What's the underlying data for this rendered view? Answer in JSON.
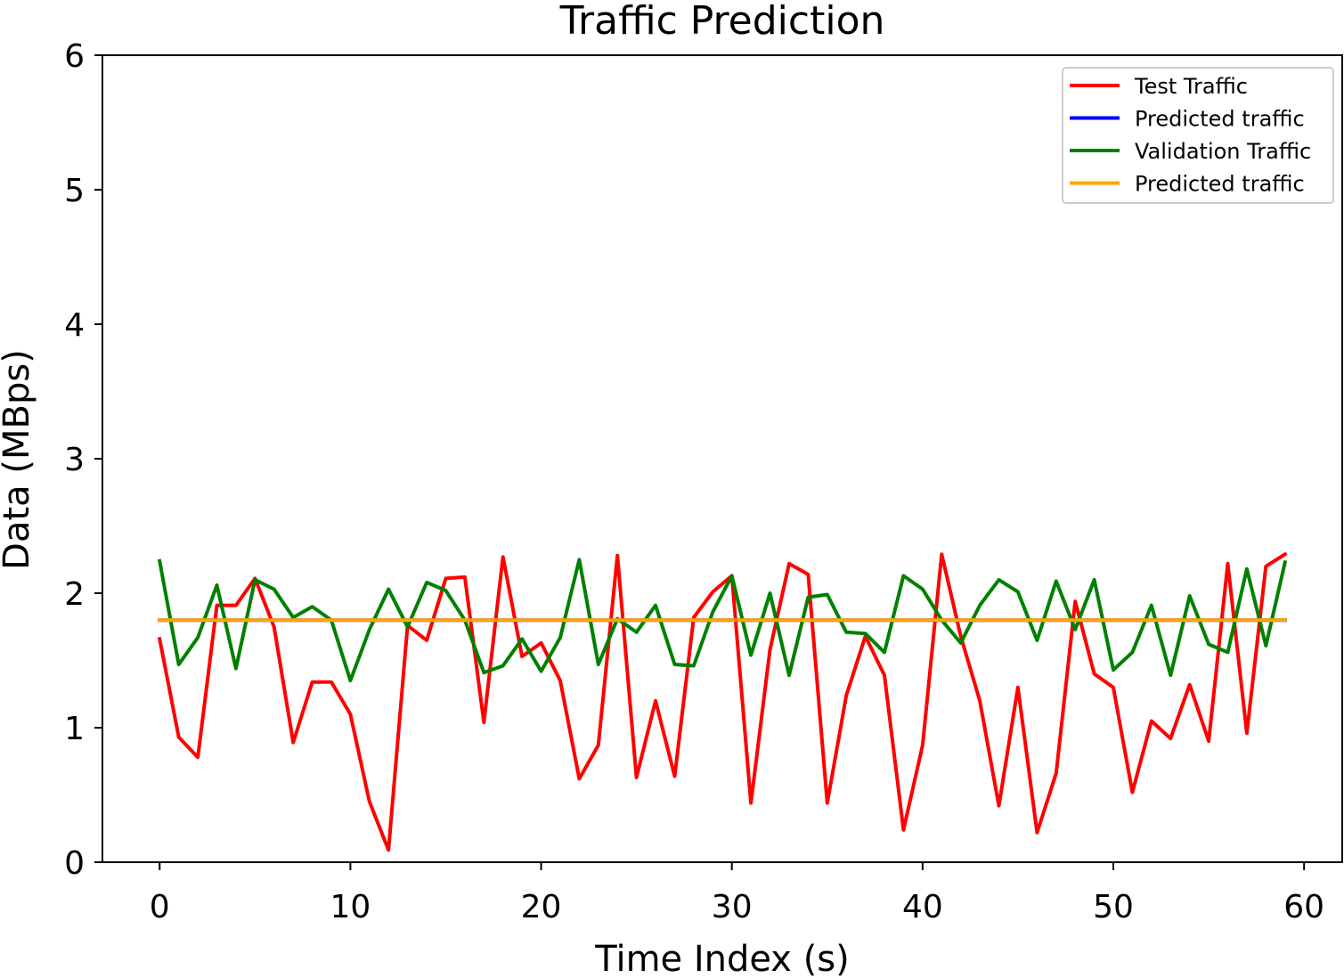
{
  "chart_data": {
    "type": "line",
    "title": "Traffic Prediction",
    "xlabel": "Time Index (s)",
    "ylabel": "Data (MBps)",
    "xlim": [
      -3,
      62
    ],
    "ylim": [
      0,
      6
    ],
    "xticks": [
      0,
      10,
      20,
      30,
      40,
      50,
      60
    ],
    "yticks": [
      0,
      1,
      2,
      3,
      4,
      5,
      6
    ],
    "grid": false,
    "legend_position": "top-right",
    "series": [
      {
        "name": "Test Traffic",
        "color": "#ff0000",
        "x": [
          0,
          1,
          2,
          3,
          4,
          5,
          6,
          7,
          8,
          9,
          10,
          11,
          12,
          13,
          14,
          15,
          16,
          17,
          18,
          19,
          20,
          21,
          22,
          23,
          24,
          25,
          26,
          27,
          28,
          29,
          30,
          31,
          32,
          33,
          34,
          35,
          36,
          37,
          38,
          39,
          40,
          41,
          42,
          43,
          44,
          45,
          46,
          47,
          48,
          49,
          50,
          51,
          52,
          53,
          54,
          55,
          56,
          57,
          58,
          59
        ],
        "values": [
          1.66,
          0.93,
          0.78,
          1.91,
          1.91,
          2.11,
          1.75,
          0.89,
          1.34,
          1.34,
          1.1,
          0.45,
          0.09,
          1.76,
          1.65,
          2.11,
          2.12,
          1.04,
          2.27,
          1.53,
          1.63,
          1.35,
          0.62,
          0.87,
          2.28,
          0.63,
          1.2,
          0.64,
          1.82,
          2.01,
          2.13,
          0.44,
          1.58,
          2.22,
          2.14,
          0.44,
          1.24,
          1.68,
          1.39,
          0.24,
          0.87,
          2.29,
          1.68,
          1.2,
          0.42,
          1.3,
          0.22,
          0.66,
          1.94,
          1.4,
          1.3,
          0.52,
          1.05,
          0.92,
          1.32,
          0.9,
          2.22,
          0.96,
          2.2,
          2.29
        ]
      },
      {
        "name": "Predicted traffic",
        "color": "#0000ff",
        "x": [
          0,
          59
        ],
        "values": [
          1.8,
          1.8
        ]
      },
      {
        "name": "Validation Traffic",
        "color": "#008000",
        "x": [
          0,
          1,
          2,
          3,
          4,
          5,
          6,
          7,
          8,
          9,
          10,
          11,
          12,
          13,
          14,
          15,
          16,
          17,
          18,
          19,
          20,
          21,
          22,
          23,
          24,
          25,
          26,
          27,
          28,
          29,
          30,
          31,
          32,
          33,
          34,
          35,
          36,
          37,
          38,
          39,
          40,
          41,
          42,
          43,
          44,
          45,
          46,
          47,
          48,
          49,
          50,
          51,
          52,
          53,
          54,
          55,
          56,
          57,
          58,
          59
        ],
        "values": [
          2.24,
          1.47,
          1.67,
          2.06,
          1.44,
          2.1,
          2.03,
          1.82,
          1.9,
          1.8,
          1.35,
          1.73,
          2.03,
          1.75,
          2.08,
          2.02,
          1.8,
          1.41,
          1.46,
          1.66,
          1.42,
          1.67,
          2.25,
          1.47,
          1.81,
          1.71,
          1.91,
          1.47,
          1.46,
          1.86,
          2.13,
          1.54,
          2.0,
          1.39,
          1.97,
          1.99,
          1.71,
          1.7,
          1.56,
          2.13,
          2.03,
          1.8,
          1.63,
          1.91,
          2.1,
          2.01,
          1.65,
          2.09,
          1.73,
          2.1,
          1.43,
          1.56,
          1.91,
          1.39,
          1.98,
          1.62,
          1.56,
          2.18,
          1.61,
          2.23
        ]
      },
      {
        "name": "Predicted traffic",
        "color": "#ffa500",
        "x": [
          0,
          59
        ],
        "values": [
          1.8,
          1.8
        ]
      }
    ]
  }
}
